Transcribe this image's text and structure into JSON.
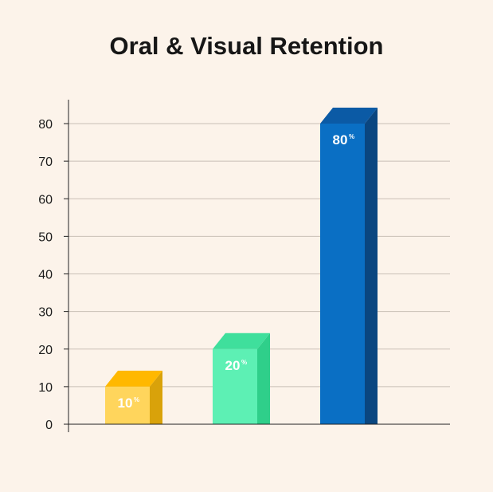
{
  "chart_data": {
    "type": "bar",
    "title": "Oral & Visual Retention",
    "xlabel": "",
    "ylabel": "",
    "ylim": [
      0,
      80
    ],
    "yticks": [
      0,
      10,
      20,
      30,
      40,
      50,
      60,
      70,
      80
    ],
    "grid": true,
    "categories": [
      "",
      "",
      ""
    ],
    "values": [
      10,
      20,
      80
    ],
    "value_labels": [
      "10",
      "20",
      "80"
    ],
    "value_unit": "%",
    "colors": [
      {
        "front": "#ffd55c",
        "side": "#d9a20a",
        "top": "#ffb800"
      },
      {
        "front": "#5df0b4",
        "side": "#2fcf8a",
        "top": "#3fdf9c"
      },
      {
        "front": "#0a6fc4",
        "side": "#0a4680",
        "top": "#0b5aa5"
      }
    ]
  }
}
